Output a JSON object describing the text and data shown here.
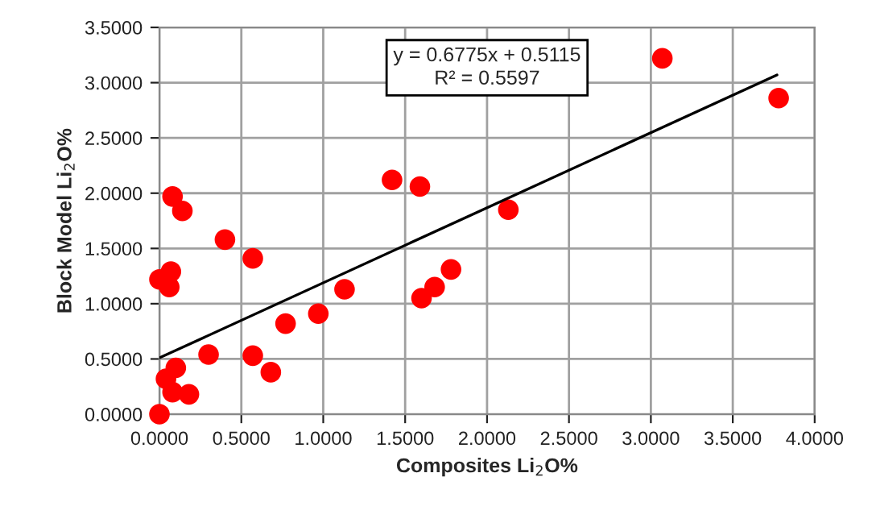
{
  "chart_data": {
    "type": "scatter",
    "xlabel": "Composites Li$_{2}$O%",
    "ylabel": "Block Model Li$_{2}$O%",
    "annotations": [
      "y = 0.6775x + 0.5115\nR² = 0.5597"
    ],
    "series": [
      {
        "color": "#ff0000",
        "marker": "circle",
        "x": [
          3.07,
          3.78,
          2.13,
          0.08,
          0.14,
          0.4,
          0.57,
          0.07,
          0.0,
          0.06,
          1.42,
          1.59,
          1.78,
          1.68,
          1.6,
          1.13,
          0.97,
          0.77,
          0.3,
          0.57,
          0.68,
          0.1,
          0.04,
          0.18,
          0.08,
          0.0
        ],
        "values": [
          3.22,
          2.86,
          1.85,
          1.97,
          1.84,
          1.58,
          1.41,
          1.29,
          1.22,
          1.15,
          2.12,
          2.06,
          1.31,
          1.15,
          1.05,
          1.13,
          0.91,
          0.82,
          0.54,
          0.53,
          0.38,
          0.42,
          0.32,
          0.18,
          0.2,
          0.0
        ]
      },
      {
        "type": "line",
        "color": "#000000",
        "x": [
          0,
          3.77
        ],
        "values": [
          0.51,
          3.07
        ]
      }
    ],
    "xlim": [
      0,
      4
    ],
    "xticks": [
      {
        "value": 0,
        "label": "0.0000"
      },
      {
        "value": 0.5,
        "label": "0.5000"
      },
      {
        "value": 1,
        "label": "1.0000"
      },
      {
        "value": 1.5,
        "label": "1.5000"
      },
      {
        "value": 2,
        "label": "2.0000"
      },
      {
        "value": 2.5,
        "label": "2.5000"
      },
      {
        "value": 3,
        "label": "3.0000"
      },
      {
        "value": 3.5,
        "label": "3.5000"
      },
      {
        "value": 4,
        "label": "4.0000"
      }
    ],
    "ylim": [
      0,
      3.5
    ],
    "yticks": [
      {
        "value": 0,
        "label": "0.0000"
      },
      {
        "value": 0.5,
        "label": "0.5000"
      },
      {
        "value": 1,
        "label": "1.0000"
      },
      {
        "value": 1.5,
        "label": "1.5000"
      },
      {
        "value": 2,
        "label": "2.0000"
      },
      {
        "value": 2.5,
        "label": "2.5000"
      },
      {
        "value": 3,
        "label": "3.0000"
      },
      {
        "value": 3.5,
        "label": "3.5000"
      }
    ],
    "grid": true
  }
}
